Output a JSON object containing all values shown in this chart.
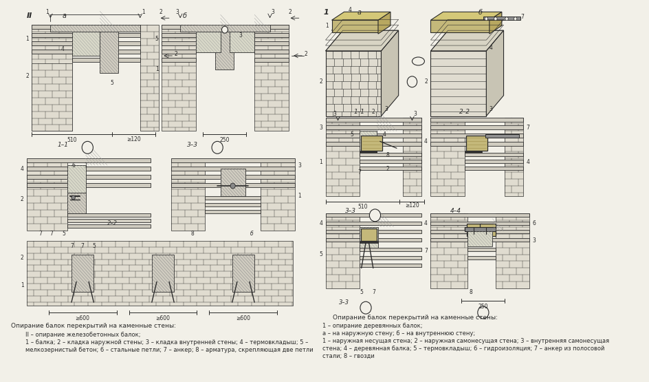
{
  "paper_color": "#f2f0e8",
  "line_color": "#2a2a2a",
  "title_left_1": "Опирание балок перекрытий на каменные стены:",
  "title_left_2": "II – опирание железобетонных балок;",
  "title_left_3": "1 – балка; 2 – кладка наружной стены; 3 – кладка внутренней стены; 4 – термовкладыш; 5 –",
  "title_left_4": "мелкозернистый бетон; 6 – стальные петли; 7 – анкер; 8 – арматура, скрепляющая две петли",
  "title_right_0": "Опирание балок перекрытий на каменные стены:",
  "title_right_1": "1 – опирание деревянных балок;",
  "title_right_2": "a – на наружную стену; б – на внутреннюю стену;",
  "title_right_3": "1 – наружная несущая стена; 2 – наружная самонесущая стена; 3 – внутренняя самонесущая",
  "title_right_4": "стена; 4 – деревянная балка; 5 – термовкладыш; 6 – гидроизоляция; 7 – анкер из полосовой",
  "title_right_5": "стали; 8 – гвозди",
  "figsize": [
    9.44,
    5.55
  ],
  "dpi": 100
}
